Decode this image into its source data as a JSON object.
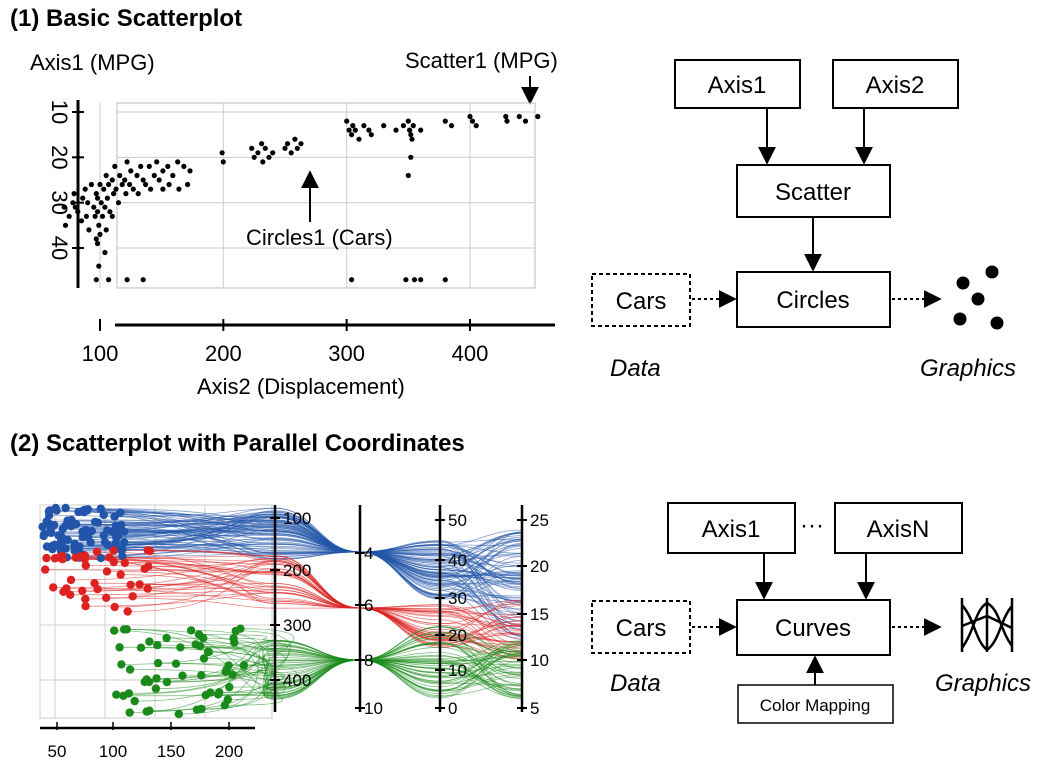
{
  "section1": {
    "title": "(1) Basic Scatterplot",
    "axis1_label": "Axis1 (MPG)",
    "scatter_label": "Scatter1 (MPG)",
    "circles_label": "Circles1 (Cars)",
    "axis2_label": "Axis2 (Displacement)",
    "diagram": {
      "axis1": "Axis1",
      "axis2": "Axis2",
      "scatter": "Scatter",
      "data_node": "Cars",
      "circles": "Circles",
      "data_caption": "Data",
      "graphics_caption": "Graphics"
    }
  },
  "section2": {
    "title": "(2) Scatterplot with Parallel Coordinates",
    "diagram": {
      "axis1": "Axis1",
      "ellipsis": "···",
      "axisn": "AxisN",
      "data_node": "Cars",
      "curves": "Curves",
      "color_mapping": "Color Mapping",
      "data_caption": "Data",
      "graphics_caption": "Graphics"
    }
  },
  "colors": {
    "blue": "#2255aa",
    "red": "#dd2222",
    "green": "#1a8a1a",
    "ink": "#000000"
  },
  "chart_data": [
    {
      "type": "scatter",
      "xlabel": "Axis2 (Displacement)",
      "ylabel": "Axis1 (MPG)",
      "x_ticks": [
        "100",
        "200",
        "300",
        "400"
      ],
      "y_ticks": [
        "10",
        "20",
        "30",
        "40"
      ],
      "xlim": [
        68,
        455
      ],
      "ylim": [
        10,
        47
      ],
      "y_inverted": true,
      "grid": true,
      "points": [
        [
          71,
          31
        ],
        [
          72,
          35
        ],
        [
          75,
          33
        ],
        [
          78,
          30
        ],
        [
          79,
          28
        ],
        [
          80,
          31
        ],
        [
          82,
          32
        ],
        [
          85,
          34
        ],
        [
          86,
          29
        ],
        [
          88,
          27
        ],
        [
          89,
          33
        ],
        [
          90,
          30
        ],
        [
          91,
          36
        ],
        [
          93,
          26
        ],
        [
          95,
          31
        ],
        [
          96,
          33
        ],
        [
          97,
          28
        ],
        [
          97,
          38
        ],
        [
          98,
          29
        ],
        [
          98,
          32
        ],
        [
          99,
          35
        ],
        [
          100,
          26
        ],
        [
          101,
          30
        ],
        [
          102,
          33
        ],
        [
          103,
          27
        ],
        [
          104,
          31
        ],
        [
          105,
          24
        ],
        [
          106,
          29
        ],
        [
          107,
          26
        ],
        [
          108,
          32
        ],
        [
          110,
          25
        ],
        [
          111,
          28
        ],
        [
          112,
          22
        ],
        [
          113,
          27
        ],
        [
          115,
          30
        ],
        [
          116,
          24
        ],
        [
          118,
          26
        ],
        [
          120,
          25
        ],
        [
          121,
          28
        ],
        [
          122,
          21
        ],
        [
          124,
          26
        ],
        [
          125,
          23
        ],
        [
          127,
          27
        ],
        [
          130,
          24
        ],
        [
          131,
          28
        ],
        [
          133,
          22
        ],
        [
          135,
          25
        ],
        [
          137,
          26
        ],
        [
          140,
          22
        ],
        [
          141,
          27
        ],
        [
          144,
          24
        ],
        [
          146,
          21
        ],
        [
          148,
          25
        ],
        [
          151,
          23
        ],
        [
          151,
          27
        ],
        [
          155,
          22
        ],
        [
          156,
          26
        ],
        [
          159,
          24
        ],
        [
          163,
          21
        ],
        [
          164,
          27
        ],
        [
          168,
          22
        ],
        [
          171,
          26
        ],
        [
          173,
          23
        ],
        [
          199,
          19
        ],
        [
          200,
          21
        ],
        [
          223,
          18
        ],
        [
          225,
          20
        ],
        [
          228,
          19
        ],
        [
          231,
          17
        ],
        [
          232,
          21
        ],
        [
          234,
          18
        ],
        [
          237,
          20
        ],
        [
          240,
          19
        ],
        [
          250,
          18
        ],
        [
          252,
          17
        ],
        [
          255,
          19
        ],
        [
          258,
          16
        ],
        [
          260,
          18
        ],
        [
          263,
          17
        ],
        [
          300,
          12
        ],
        [
          302,
          14
        ],
        [
          304,
          15
        ],
        [
          305,
          13
        ],
        [
          307,
          14
        ],
        [
          310,
          16
        ],
        [
          314,
          13
        ],
        [
          318,
          14
        ],
        [
          320,
          15
        ],
        [
          330,
          13
        ],
        [
          340,
          14
        ],
        [
          346,
          13
        ],
        [
          350,
          12
        ],
        [
          351,
          14
        ],
        [
          352,
          15
        ],
        [
          353,
          16
        ],
        [
          354,
          13
        ],
        [
          360,
          14
        ],
        [
          380,
          12
        ],
        [
          385,
          13
        ],
        [
          400,
          11
        ],
        [
          402,
          12
        ],
        [
          405,
          13
        ],
        [
          429,
          11
        ],
        [
          430,
          12
        ],
        [
          440,
          11
        ],
        [
          445,
          12
        ],
        [
          455,
          11
        ],
        [
          97,
          47
        ],
        [
          99,
          44
        ],
        [
          107,
          47
        ],
        [
          122,
          47
        ],
        [
          135,
          47
        ],
        [
          304,
          47
        ],
        [
          348,
          47
        ],
        [
          355,
          47
        ],
        [
          360,
          47
        ],
        [
          380,
          47
        ],
        [
          98,
          39
        ],
        [
          100,
          37
        ],
        [
          104,
          41
        ],
        [
          105,
          36
        ],
        [
          110,
          33
        ],
        [
          350,
          24
        ],
        [
          352,
          20
        ]
      ]
    },
    {
      "type": "parallel_coordinates",
      "series": [
        {
          "name": "4",
          "color": "#2255aa"
        },
        {
          "name": "6",
          "color": "#dd2222"
        },
        {
          "name": "8",
          "color": "#1a8a1a"
        }
      ],
      "scatter_x_ticks": [
        "50",
        "100",
        "150",
        "200"
      ],
      "axes": [
        {
          "ticks": [
            "100",
            "200",
            "300",
            "400"
          ]
        },
        {
          "ticks": [
            "4",
            "6",
            "8",
            "10"
          ]
        },
        {
          "ticks": [
            "50",
            "40",
            "30",
            "20",
            "10",
            "0"
          ]
        },
        {
          "ticks": [
            "25",
            "20",
            "15",
            "10",
            "5"
          ]
        }
      ]
    }
  ]
}
